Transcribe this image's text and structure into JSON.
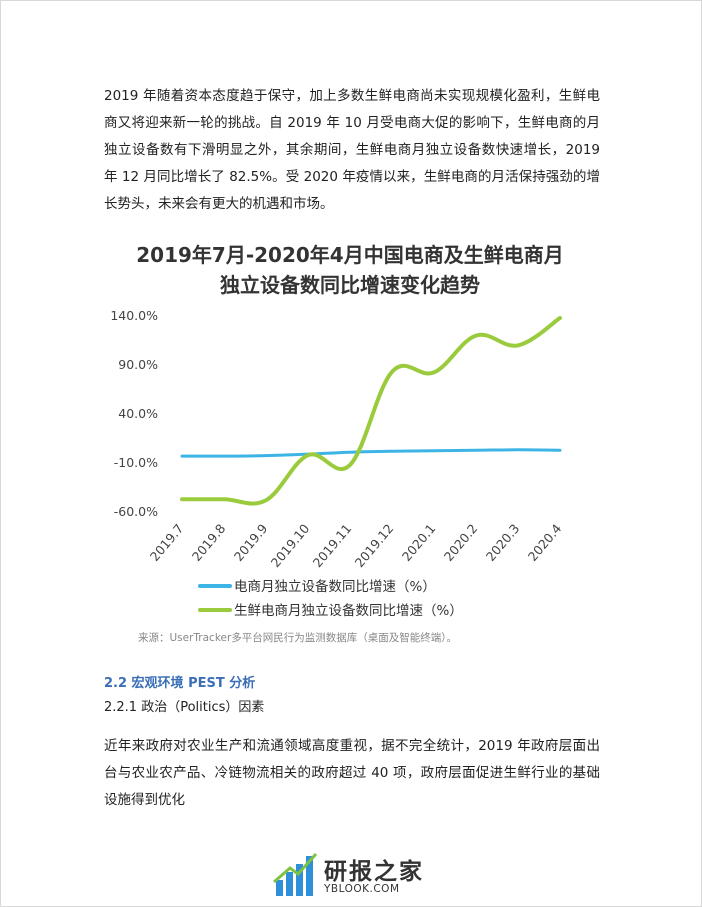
{
  "document": {
    "para1": "2019 年随着资本态度趋于保守，加上多数生鲜电商尚未实现规模化盈利，生鲜电商又将迎来新一轮的挑战。自 2019 年 10 月受电商大促的影响下，生鲜电商的月独立设备数有下滑明显之外，其余期间，生鲜电商月独立设备数快速增长，2019 年 12 月同比增长了 82.5%。受 2020 年疫情以来，生鲜电商的月活保持强劲的增长势头，未来会有更大的机遇和市场。",
    "section_heading": "2.2 宏观环境 PEST 分析",
    "subsection_heading": "2.2.1 政治（Politics）因素",
    "para2": "近年来政府对农业生产和流通领域高度重视，据不完全统计，2019 年政府层面出台与农业农产品、冷链物流相关的政府超过 40 项，政府层面促进生鲜行业的基础设施得到优化"
  },
  "chart_data": {
    "type": "line",
    "title_line1": "2019年7月-2020年4月中国电商及生鲜电商月",
    "title_line2": "独立设备数同比增速变化趋势",
    "categories": [
      "2019.7",
      "2019.8",
      "2019.9",
      "2019.10",
      "2019.11",
      "2019.12",
      "2020.1",
      "2020.2",
      "2020.3",
      "2020.4"
    ],
    "y_ticks": [
      "140.0%",
      "90.0%",
      "40.0%",
      "-10.0%",
      "-60.0%"
    ],
    "ylim": [
      -60,
      140
    ],
    "series": [
      {
        "name": "电商月独立设备数同比增速（%）",
        "color": "#3cb4e6",
        "values": [
          -3,
          -3,
          -2.5,
          -1,
          1,
          2,
          2.5,
          3,
          3.5,
          3
        ]
      },
      {
        "name": "生鲜电商月独立设备数同比增速（%）",
        "color": "#9acb3c",
        "values": [
          -47,
          -47,
          -48,
          -2,
          -12,
          83,
          82.5,
          120,
          110,
          138
        ]
      }
    ],
    "grid": false,
    "legend_position": "bottom-left",
    "source": "来源：UserTracker多平台网民行为监测数据库（桌面及智能终端）。"
  },
  "watermark": {
    "cn": "研报之家",
    "en": "YBLOOK.COM",
    "bar_color": "#2f8fd8",
    "accent_color": "#7dc242"
  }
}
